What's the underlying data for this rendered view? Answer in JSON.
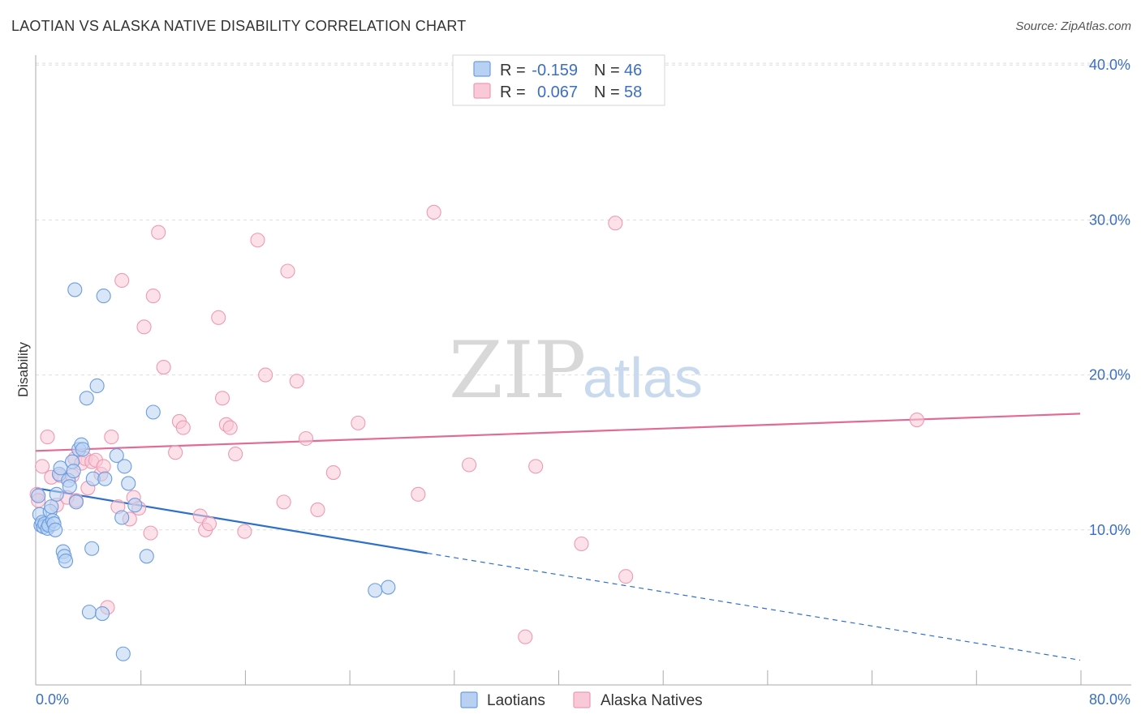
{
  "title": "LAOTIAN VS ALASKA NATIVE DISABILITY CORRELATION CHART",
  "source": "Source: ZipAtlas.com",
  "colors": {
    "laotian_fill": "#b8d1f3",
    "laotian_stroke": "#6b9de0",
    "laotian_line": "#2d6fcc",
    "alaska_fill": "#f9c9d7",
    "alaska_stroke": "#ee9ab3",
    "alaska_line": "#e26b95",
    "value_blue": "#3a6fc4",
    "grid": "#dddddd"
  },
  "watermark": {
    "zip": "ZIP",
    "atlas": "atlas"
  },
  "stats_legend": [
    {
      "series": "Laotians",
      "r_label": "R =",
      "r_value": "-0.159",
      "n_label": "N =",
      "n_value": "46"
    },
    {
      "series": "Alaska Natives",
      "r_label": "R =",
      "r_value": "0.067",
      "n_label": "N =",
      "n_value": "58"
    }
  ],
  "chart_data": {
    "type": "scatter",
    "title": "LAOTIAN VS ALASKA NATIVE DISABILITY CORRELATION CHART",
    "xlabel": "",
    "ylabel": "Disability",
    "xlim": [
      0,
      80
    ],
    "ylim": [
      0,
      41
    ],
    "x_tick_labels": [
      {
        "value": 0,
        "label": "0.0%"
      },
      {
        "value": 80,
        "label": "80.0%"
      }
    ],
    "x_minor_ticks": [
      8,
      16,
      24,
      32,
      40,
      48,
      56,
      64,
      72,
      80
    ],
    "y_ticks": [
      {
        "value": 10,
        "label": "10.0%"
      },
      {
        "value": 20,
        "label": "20.0%"
      },
      {
        "value": 30,
        "label": "30.0%"
      },
      {
        "value": 40,
        "label": "40.0%"
      }
    ],
    "grid": true,
    "legend": [
      "Laotians",
      "Alaska Natives"
    ],
    "series": [
      {
        "name": "Laotians",
        "r": -0.159,
        "n": 46,
        "trend": {
          "x_start": 0,
          "y_start": 12.7,
          "x_solid_end": 30,
          "y_solid_end": 8.5,
          "x_end": 80,
          "y_end": 1.6
        },
        "points": [
          [
            0.2,
            12.2
          ],
          [
            0.3,
            11.0
          ],
          [
            0.4,
            10.3
          ],
          [
            0.5,
            10.5
          ],
          [
            0.6,
            10.2
          ],
          [
            0.7,
            10.4
          ],
          [
            0.9,
            10.1
          ],
          [
            1.0,
            10.3
          ],
          [
            1.1,
            11.2
          ],
          [
            1.2,
            11.5
          ],
          [
            1.3,
            10.6
          ],
          [
            1.4,
            10.4
          ],
          [
            1.5,
            10.0
          ],
          [
            1.6,
            12.3
          ],
          [
            1.8,
            13.6
          ],
          [
            1.9,
            14.0
          ],
          [
            2.1,
            8.6
          ],
          [
            2.2,
            8.3
          ],
          [
            2.3,
            8.0
          ],
          [
            2.5,
            13.2
          ],
          [
            2.6,
            12.8
          ],
          [
            2.8,
            14.4
          ],
          [
            2.9,
            13.8
          ],
          [
            3.0,
            25.5
          ],
          [
            3.1,
            11.8
          ],
          [
            3.3,
            15.2
          ],
          [
            3.5,
            15.5
          ],
          [
            3.6,
            15.2
          ],
          [
            3.9,
            18.5
          ],
          [
            4.1,
            4.7
          ],
          [
            4.3,
            8.8
          ],
          [
            4.4,
            13.3
          ],
          [
            4.7,
            19.3
          ],
          [
            5.1,
            4.6
          ],
          [
            5.2,
            25.1
          ],
          [
            5.3,
            13.3
          ],
          [
            6.2,
            14.8
          ],
          [
            6.6,
            10.8
          ],
          [
            6.7,
            2.0
          ],
          [
            6.8,
            14.1
          ],
          [
            7.1,
            13.0
          ],
          [
            7.6,
            11.6
          ],
          [
            8.5,
            8.3
          ],
          [
            9.0,
            17.6
          ],
          [
            26.0,
            6.1
          ],
          [
            27.0,
            6.3
          ]
        ]
      },
      {
        "name": "Alaska Natives",
        "r": 0.067,
        "n": 58,
        "trend": {
          "x_start": 0,
          "y_start": 15.1,
          "x_solid_end": 80,
          "y_solid_end": 17.5,
          "x_end": 80,
          "y_end": 17.5
        },
        "points": [
          [
            0.1,
            12.3
          ],
          [
            0.2,
            11.9
          ],
          [
            0.5,
            14.1
          ],
          [
            0.9,
            16.0
          ],
          [
            1.2,
            13.4
          ],
          [
            1.6,
            11.6
          ],
          [
            1.9,
            13.5
          ],
          [
            2.4,
            12.1
          ],
          [
            2.8,
            13.5
          ],
          [
            3.0,
            14.6
          ],
          [
            3.1,
            11.9
          ],
          [
            3.5,
            14.3
          ],
          [
            3.8,
            14.6
          ],
          [
            4.0,
            12.7
          ],
          [
            4.3,
            14.4
          ],
          [
            4.6,
            14.5
          ],
          [
            5.0,
            13.6
          ],
          [
            5.2,
            14.1
          ],
          [
            5.5,
            5.0
          ],
          [
            5.8,
            16.0
          ],
          [
            6.3,
            11.5
          ],
          [
            6.6,
            26.1
          ],
          [
            7.2,
            10.7
          ],
          [
            7.5,
            12.1
          ],
          [
            7.9,
            11.4
          ],
          [
            8.3,
            23.1
          ],
          [
            8.8,
            9.8
          ],
          [
            9.0,
            25.1
          ],
          [
            9.4,
            29.2
          ],
          [
            9.8,
            20.5
          ],
          [
            10.7,
            15.0
          ],
          [
            11.0,
            17.0
          ],
          [
            11.3,
            16.6
          ],
          [
            12.6,
            10.9
          ],
          [
            13.0,
            10.0
          ],
          [
            13.3,
            10.4
          ],
          [
            14.0,
            23.7
          ],
          [
            14.3,
            18.5
          ],
          [
            14.6,
            16.8
          ],
          [
            14.9,
            16.6
          ],
          [
            15.3,
            14.9
          ],
          [
            16.0,
            9.9
          ],
          [
            17.0,
            28.7
          ],
          [
            17.6,
            20.0
          ],
          [
            19.0,
            11.8
          ],
          [
            19.3,
            26.7
          ],
          [
            20.0,
            19.6
          ],
          [
            20.7,
            15.9
          ],
          [
            21.6,
            11.3
          ],
          [
            22.8,
            13.7
          ],
          [
            24.7,
            16.9
          ],
          [
            29.3,
            12.3
          ],
          [
            30.5,
            30.5
          ],
          [
            33.2,
            14.2
          ],
          [
            37.5,
            3.1
          ],
          [
            38.3,
            14.1
          ],
          [
            41.8,
            9.1
          ],
          [
            44.4,
            29.8
          ]
        ],
        "extra_points": [
          [
            45.2,
            7.0
          ],
          [
            67.5,
            17.1
          ]
        ]
      }
    ]
  }
}
